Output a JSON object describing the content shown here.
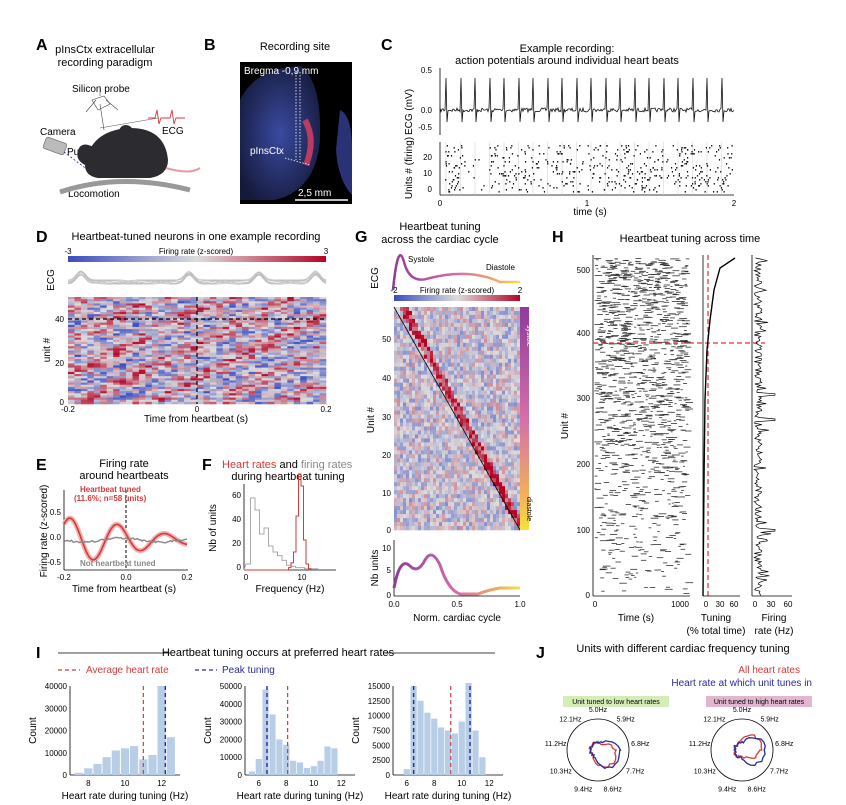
{
  "panels": {
    "A": {
      "letter": "A",
      "title_l1": "pInsCtx extracellular",
      "title_l2": "recording paradigm",
      "probe": "Silicon probe",
      "camera": "Camera",
      "pupil": "Pupil",
      "ecg": "ECG",
      "locomotion": "Locomotion"
    },
    "B": {
      "letter": "B",
      "title": "Recording site",
      "bregma": "Bregma -0,9 mm",
      "region": "pInsCtx",
      "scale": "2,5 mm"
    },
    "C": {
      "letter": "C",
      "title_l1": "Example recording:",
      "title_l2": "action potentials around individual heart beats",
      "ecg_ylabel": "ECG (mV)",
      "units_ylabel": "Units # (firing)",
      "xlabel": "time (s)",
      "ecg_ticks": [
        "0.5",
        "0.0",
        "-0.5"
      ],
      "unit_ticks": [
        "20",
        "10",
        "0"
      ],
      "x_ticks": [
        "0",
        "1",
        "2"
      ]
    },
    "D": {
      "letter": "D",
      "title": "Heartbeat-tuned neurons in one example recording",
      "cbar_label": "Firing rate (z-scored)",
      "cbar_min": "-3",
      "cbar_max": "3",
      "ecg_label": "ECG",
      "ylabel": "unit #",
      "xlabel": "Time from heartbeat (s)",
      "y_ticks": [
        "40",
        "20",
        "0"
      ],
      "x_ticks": [
        "-0.2",
        "0",
        "0.2"
      ]
    },
    "E": {
      "letter": "E",
      "title_l1": "Firing rate",
      "title_l2": "around heartbeats",
      "ylabel": "Firing rate (z-scored)",
      "xlabel": "Time from heartbeat (s)",
      "tuned_l1": "Heartbeat tuned",
      "tuned_l2": "(11.6%; n=58 units)",
      "not_tuned": "Not heartbeat tuned",
      "y_ticks": [
        "0.5",
        "0.0",
        "-0.5"
      ],
      "x_ticks": [
        "-0.2",
        "0.0",
        "0.2"
      ]
    },
    "F": {
      "letter": "F",
      "title_red": "Heart rates",
      "title_and": " and ",
      "title_gray": "firing rates",
      "title_l2": "during heartbeat tuning",
      "ylabel": "Nb of units",
      "xlabel": "Frequency (Hz)",
      "y_ticks": [
        "60",
        "40",
        "20",
        "0"
      ],
      "x_ticks": [
        "0",
        "10"
      ]
    },
    "G": {
      "letter": "G",
      "title_l1": "Heartbeat tuning",
      "title_l2": "across the cardiac cycle",
      "ecg_label": "ECG",
      "systole": "Systole",
      "diastole": "Diastole",
      "cbar_label": "Firing rate (z-scored)",
      "cbar_min": "-2",
      "cbar_max": "2",
      "ylabel": "Unit #",
      "bar_top": "systole",
      "bar_bottom": "diastole",
      "nb_label": "Nb units",
      "xlabel": "Norm. cardiac cycle",
      "y_ticks": [
        "50",
        "40",
        "30",
        "20",
        "10",
        "0"
      ],
      "x_ticks": [
        "0.0",
        "0.5",
        "1.0"
      ],
      "nb_ticks": [
        "10",
        "5",
        "0"
      ]
    },
    "H": {
      "letter": "H",
      "title": "Heartbeat tuning across time",
      "ylabel": "Unit #",
      "xlabel": "Time (s)",
      "tuning_l1": "Tuning",
      "tuning_l2": "(% total time)",
      "fr_l1": "Firing",
      "fr_l2": "rate (Hz)",
      "y_ticks": [
        "500",
        "400",
        "300",
        "200",
        "100",
        "0"
      ],
      "x_ticks": [
        "0",
        "1000"
      ],
      "tuning_ticks": [
        "0",
        "30",
        "60"
      ],
      "fr_ticks": [
        "0",
        "30",
        "60"
      ]
    },
    "I": {
      "letter": "I",
      "title": "Heartbeat tuning occurs at preferred heart rates",
      "avg": "Average heart rate",
      "peak": "Peak tuning",
      "ylabel": "Count",
      "xlabel": "Heart rate during tuning (Hz)"
    },
    "J": {
      "letter": "J",
      "title": "Units with different cardiac frequency tuning",
      "all": "All heart rates",
      "tunes": "Heart rate at which unit tunes in",
      "low": "Unit tuned to low heart rates",
      "high": "Unit tuned to high heart rates",
      "polar_labels": [
        "5.0Hz",
        "5.9Hz",
        "6.8Hz",
        "7.7Hz",
        "8.6Hz",
        "9.4Hz",
        "10.3Hz",
        "11.2Hz",
        "12.1Hz"
      ]
    }
  },
  "colors": {
    "red": "#d43a3a",
    "blue": "#2b2b9a",
    "hist": "#b8cde6",
    "gray": "#9a9a9a"
  },
  "chart_data": [
    {
      "type": "bar",
      "panel": "I-1",
      "x": [
        7.5,
        8,
        8.5,
        9,
        9.5,
        10,
        10.5,
        11,
        11.5,
        12,
        12.5
      ],
      "values": [
        1000,
        3000,
        5000,
        8000,
        11000,
        12000,
        13000,
        7000,
        9000,
        40000,
        17000
      ],
      "xlabel": "Heart rate during tuning (Hz)",
      "ylabel": "Count",
      "x_ticks": [
        8,
        10,
        12
      ],
      "y_ticks": [
        0,
        10000,
        20000,
        30000,
        40000
      ],
      "average": 11.0,
      "peak": 12.2
    },
    {
      "type": "bar",
      "panel": "I-2",
      "x": [
        5.5,
        6,
        6.5,
        7,
        7.5,
        8,
        8.5,
        9,
        9.5,
        10,
        10.5,
        11,
        11.5
      ],
      "values": [
        2000,
        9000,
        48000,
        34000,
        20000,
        17000,
        8000,
        7000,
        4000,
        5000,
        8000,
        16000,
        15000
      ],
      "xlabel": "Heart rate during tuning (Hz)",
      "ylabel": "Count",
      "x_ticks": [
        6,
        8,
        10,
        12
      ],
      "y_ticks": [
        0,
        10000,
        20000,
        30000,
        40000,
        50000
      ],
      "average": 8.1,
      "peak": 6.6
    },
    {
      "type": "bar",
      "panel": "I-3",
      "x": [
        6,
        6.5,
        7,
        7.5,
        8,
        8.5,
        9,
        9.5,
        10,
        10.5,
        11,
        11.5
      ],
      "values": [
        1000,
        15000,
        12500,
        10500,
        9500,
        8000,
        7500,
        7000,
        9000,
        15500,
        7500,
        3000
      ],
      "xlabel": "Heart rate during tuning (Hz)",
      "ylabel": "Count",
      "x_ticks": [
        6,
        8,
        10,
        12
      ],
      "y_ticks": [
        0,
        2500,
        5000,
        7500,
        10000,
        12500,
        15000
      ],
      "average": 9.2,
      "peak": [
        6.5,
        10.6
      ]
    }
  ]
}
